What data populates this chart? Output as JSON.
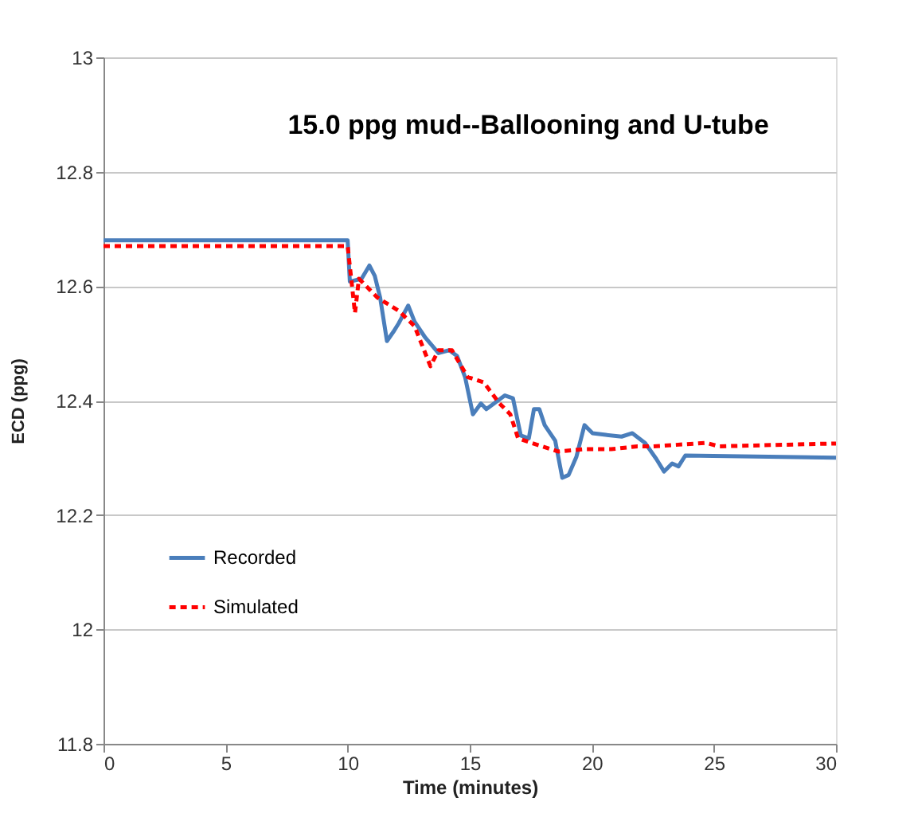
{
  "chart_data": {
    "type": "line",
    "title": "15.0 ppg mud--Ballooning and U-tube",
    "xlabel": "Time (minutes)",
    "ylabel": "ECD (ppg)",
    "xlim": [
      0,
      30
    ],
    "xticks": [
      0,
      5,
      10,
      15,
      20,
      25,
      30
    ],
    "ylim": [
      11.8,
      13
    ],
    "yticks": [
      11.8,
      12,
      12.2,
      12.4,
      12.6,
      12.8,
      13
    ],
    "grid": "y",
    "legend": "left",
    "marker": "none",
    "series": [
      {
        "name": "Recorded",
        "color": "#4a7ebb",
        "line_style": "solid",
        "x": [
          0,
          10,
          10.09,
          10.57,
          10.89,
          11.11,
          11.33,
          11.61,
          11.87,
          12.09,
          12.48,
          12.74,
          13.18,
          13.72,
          14.16,
          14.48,
          14.81,
          15.13,
          15.46,
          15.68,
          16.44,
          16.77,
          17.09,
          17.42,
          17.63,
          17.85,
          18.07,
          18.5,
          18.79,
          19.05,
          19.37,
          19.7,
          20.03,
          20.57,
          21.22,
          21.66,
          22.18,
          22.64,
          22.96,
          23.29,
          23.55,
          23.83,
          30
        ],
        "values": [
          12.68,
          12.68,
          12.608,
          12.613,
          12.636,
          12.618,
          12.58,
          12.504,
          12.52,
          12.535,
          12.566,
          12.538,
          12.51,
          12.483,
          12.488,
          12.478,
          12.441,
          12.376,
          12.395,
          12.385,
          12.409,
          12.404,
          12.339,
          12.334,
          12.385,
          12.385,
          12.357,
          12.33,
          12.265,
          12.27,
          12.302,
          12.357,
          12.343,
          12.34,
          12.337,
          12.343,
          12.326,
          12.298,
          12.276,
          12.29,
          12.285,
          12.304,
          12.3
        ]
      },
      {
        "name": "Simulated",
        "color": "#ff0000",
        "line_style": "dashed",
        "x": [
          0,
          10,
          10.3,
          10.46,
          11.22,
          12.09,
          12.74,
          13.39,
          13.72,
          14.27,
          14.92,
          15.57,
          16.22,
          16.66,
          16.98,
          17.53,
          18.61,
          19.7,
          20.79,
          21.87,
          22.5,
          24.7,
          25.2,
          30
        ],
        "values": [
          12.67,
          12.67,
          12.553,
          12.613,
          12.58,
          12.557,
          12.53,
          12.46,
          12.488,
          12.488,
          12.441,
          12.432,
          12.395,
          12.376,
          12.334,
          12.326,
          12.311,
          12.315,
          12.315,
          12.32,
          12.32,
          12.326,
          12.32,
          12.325
        ]
      }
    ]
  }
}
